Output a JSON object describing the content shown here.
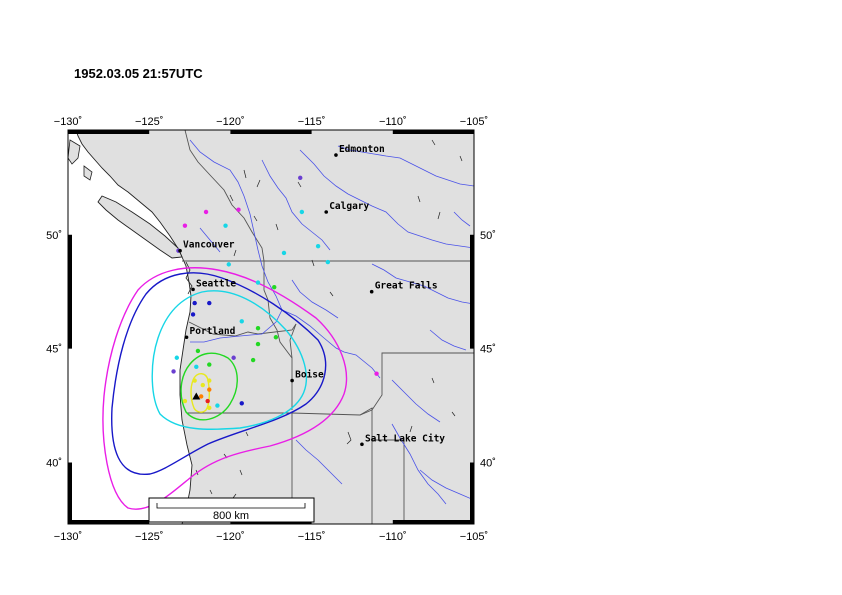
{
  "title": "1952.03.05 21:57UTC",
  "axes": {
    "lon_ticks": [
      "−130˚",
      "−125˚",
      "−120˚",
      "−115˚",
      "−110˚",
      "−105˚"
    ],
    "lon_values": [
      -130,
      -125,
      -120,
      -115,
      -110,
      -105
    ],
    "lat_ticks": [
      "40˚",
      "45˚",
      "50˚"
    ],
    "lat_values": [
      40,
      45,
      50
    ],
    "lon_range": [
      -130,
      -105
    ],
    "lat_range": [
      37.3,
      54.6
    ]
  },
  "cities": [
    {
      "name": "Edmonton",
      "lon": -113.5,
      "lat": 53.5
    },
    {
      "name": "Calgary",
      "lon": -114.1,
      "lat": 51.0
    },
    {
      "name": "Vancouver",
      "lon": -123.1,
      "lat": 49.3
    },
    {
      "name": "Seattle",
      "lon": -122.3,
      "lat": 47.6
    },
    {
      "name": "Great Falls",
      "lon": -111.3,
      "lat": 47.5
    },
    {
      "name": "Portland",
      "lon": -122.7,
      "lat": 45.5
    },
    {
      "name": "Boise",
      "lon": -116.2,
      "lat": 43.6
    },
    {
      "name": "Salt Lake City",
      "lon": -111.9,
      "lat": 40.8
    }
  ],
  "epicenter": {
    "lon": -122.1,
    "lat": 42.9
  },
  "scale_bar": {
    "label": "800 km"
  },
  "colors": {
    "land": "#e0e0e0",
    "ocean": "#ffffff",
    "border": "#555555",
    "river": "#4a52e8",
    "magenta": "#e91ee6",
    "blue": "#1818c8",
    "cyan": "#17d6e6",
    "green": "#22d822",
    "yellow": "#e8e820",
    "orange": "#ff7f00",
    "red": "#e82020"
  },
  "intensity_points": [
    {
      "lon": -115.7,
      "lat": 52.5,
      "color": "#6a3fd0"
    },
    {
      "lon": -122.8,
      "lat": 50.4,
      "color": "#e91ee6"
    },
    {
      "lon": -121.5,
      "lat": 51.0,
      "color": "#e91ee6"
    },
    {
      "lon": -119.5,
      "lat": 51.1,
      "color": "#e91ee6"
    },
    {
      "lon": -120.3,
      "lat": 50.4,
      "color": "#17d6e6"
    },
    {
      "lon": -115.6,
      "lat": 51.0,
      "color": "#17d6e6"
    },
    {
      "lon": -114.6,
      "lat": 49.5,
      "color": "#17d6e6"
    },
    {
      "lon": -116.7,
      "lat": 49.2,
      "color": "#17d6e6"
    },
    {
      "lon": -114.0,
      "lat": 48.8,
      "color": "#17d6e6"
    },
    {
      "lon": -120.1,
      "lat": 48.7,
      "color": "#17d6e6"
    },
    {
      "lon": -123.2,
      "lat": 49.3,
      "color": "#6a3fd0"
    },
    {
      "lon": -118.3,
      "lat": 47.9,
      "color": "#17d6e6"
    },
    {
      "lon": -117.3,
      "lat": 47.7,
      "color": "#22d822"
    },
    {
      "lon": -122.2,
      "lat": 47.0,
      "color": "#1818c8"
    },
    {
      "lon": -121.3,
      "lat": 47.0,
      "color": "#1818c8"
    },
    {
      "lon": -122.3,
      "lat": 46.5,
      "color": "#1818c8"
    },
    {
      "lon": -119.3,
      "lat": 46.2,
      "color": "#17d6e6"
    },
    {
      "lon": -118.3,
      "lat": 45.9,
      "color": "#22d822"
    },
    {
      "lon": -118.3,
      "lat": 45.2,
      "color": "#22d822"
    },
    {
      "lon": -117.2,
      "lat": 45.5,
      "color": "#22d822"
    },
    {
      "lon": -122.0,
      "lat": 44.9,
      "color": "#22d822"
    },
    {
      "lon": -123.3,
      "lat": 44.6,
      "color": "#17d6e6"
    },
    {
      "lon": -122.1,
      "lat": 44.2,
      "color": "#17d6e6"
    },
    {
      "lon": -123.5,
      "lat": 44.0,
      "color": "#6a3fd0"
    },
    {
      "lon": -119.8,
      "lat": 44.6,
      "color": "#6a3fd0"
    },
    {
      "lon": -121.3,
      "lat": 44.3,
      "color": "#22d822"
    },
    {
      "lon": -122.2,
      "lat": 43.6,
      "color": "#e8e820"
    },
    {
      "lon": -121.7,
      "lat": 43.4,
      "color": "#e8e820"
    },
    {
      "lon": -121.3,
      "lat": 43.6,
      "color": "#e8e820"
    },
    {
      "lon": -118.6,
      "lat": 44.5,
      "color": "#22d822"
    },
    {
      "lon": -121.3,
      "lat": 43.2,
      "color": "#ff7f00"
    },
    {
      "lon": -121.8,
      "lat": 42.9,
      "color": "#ff7f00"
    },
    {
      "lon": -121.4,
      "lat": 42.7,
      "color": "#e82020"
    },
    {
      "lon": -122.8,
      "lat": 42.7,
      "color": "#e8e820"
    },
    {
      "lon": -121.3,
      "lat": 42.4,
      "color": "#e8e820"
    },
    {
      "lon": -120.8,
      "lat": 42.5,
      "color": "#17d6e6"
    },
    {
      "lon": -119.3,
      "lat": 42.6,
      "color": "#1818c8"
    },
    {
      "lon": -111.0,
      "lat": 43.9,
      "color": "#e91ee6"
    }
  ]
}
